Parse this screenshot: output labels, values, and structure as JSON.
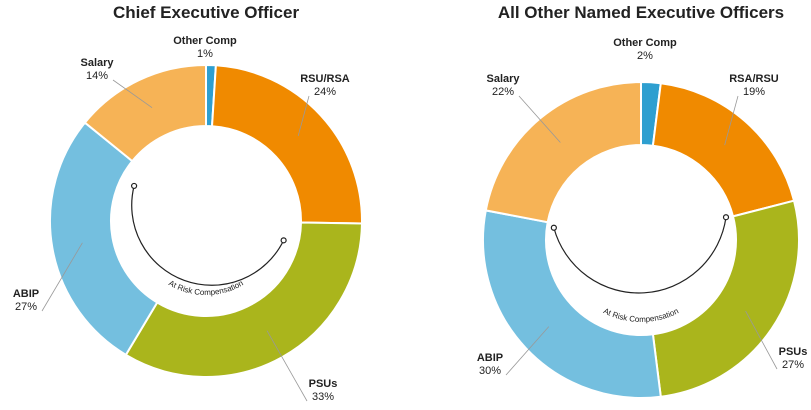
{
  "chart_data": [
    {
      "type": "pie",
      "title": "Chief Executive Officer",
      "categories": [
        "Other Comp",
        "RSU/RSA",
        "PSUs",
        "ABIP",
        "Salary"
      ],
      "values": [
        1,
        24,
        33,
        27,
        14
      ],
      "value_labels": [
        "1%",
        "24%",
        "33%",
        "27%",
        "14%"
      ],
      "colors": [
        "#2e9fd0",
        "#f08a00",
        "#aab51c",
        "#74bfdf",
        "#f6b356"
      ],
      "annotation": "At Risk Compensation"
    },
    {
      "type": "pie",
      "title": "All Other Named Executive Officers",
      "categories": [
        "Other Comp",
        "RSA/RSU",
        "PSUs",
        "ABIP",
        "Salary"
      ],
      "values": [
        2,
        19,
        27,
        30,
        22
      ],
      "value_labels": [
        "2%",
        "19%",
        "27%",
        "30%",
        "22%"
      ],
      "colors": [
        "#2e9fd0",
        "#f08a00",
        "#aab51c",
        "#74bfdf",
        "#f6b356"
      ],
      "annotation": "At Risk Compensation"
    }
  ]
}
